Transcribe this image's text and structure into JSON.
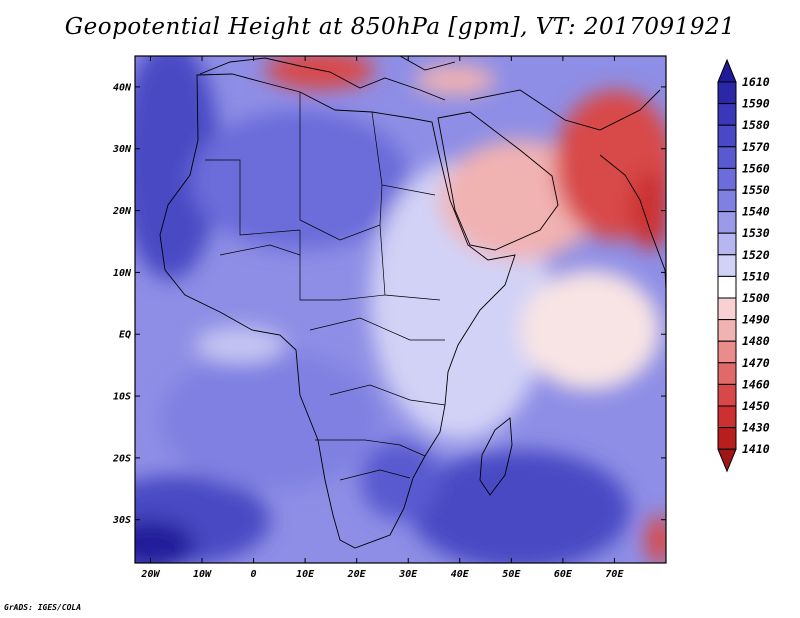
{
  "title": "Geopotential Height at 850hPa [gpm], VT: 2017091921",
  "map": {
    "variable": "Geopotential Height",
    "level": "850hPa",
    "units": "gpm",
    "valid_time": "2017091921",
    "lon_range": [
      -23,
      80
    ],
    "lat_range": [
      -37,
      45
    ],
    "lon_ticks": [
      "20W",
      "10W",
      "0",
      "10E",
      "20E",
      "30E",
      "40E",
      "50E",
      "60E",
      "70E"
    ],
    "lat_ticks": [
      "40N",
      "30N",
      "20N",
      "10N",
      "EQ",
      "10S",
      "20S",
      "30S"
    ]
  },
  "colorbar": {
    "levels": [
      "1610",
      "1590",
      "1580",
      "1570",
      "1560",
      "1550",
      "1540",
      "1530",
      "1520",
      "1510",
      "1500",
      "1490",
      "1480",
      "1470",
      "1460",
      "1450",
      "1430",
      "1410"
    ],
    "colors": [
      "#201a9a",
      "#2b28a8",
      "#3a38b8",
      "#4a48c4",
      "#5a5ad0",
      "#6c6cda",
      "#8080e2",
      "#9a9ae9",
      "#b6b6f0",
      "#d2d2f6",
      "#ffffff",
      "#f8d2d2",
      "#f1b2b2",
      "#e88c8c",
      "#e06a6a",
      "#d84848",
      "#cc3030",
      "#b81e1e",
      "#a01616"
    ]
  },
  "credit": "GrADS: IGES/COLA"
}
